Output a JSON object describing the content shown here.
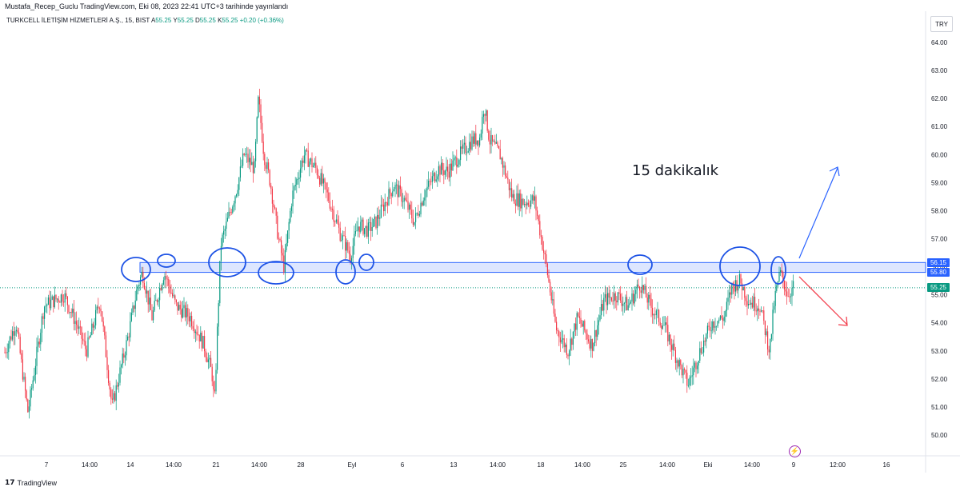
{
  "header": {
    "publish_line": "Mustafa_Recep_Guclu TradingView.com, Eki 08, 2023 22:41 UTC+3 tarihinde yayınlandı"
  },
  "symbol": {
    "name_line": "TURKCELL İLETİŞİM HİZMETLERİ A.Ş., 15, BIST",
    "ohlc": [
      "A",
      "55.25",
      "Y",
      "55.25",
      "D",
      "55.25",
      "K",
      "55.25"
    ],
    "change": "+0.20 (+0.36%)"
  },
  "currency": "TRY",
  "annotation": "15 dakikalık",
  "footer": {
    "logo": "17",
    "brand": "TradingView"
  },
  "colors": {
    "up": "#089981",
    "down": "#f23645",
    "zone_border": "#2962ff",
    "zone_fill": "rgba(41,98,255,0.16)",
    "circle": "#1e53e5",
    "arrow_up": "#2962ff",
    "arrow_down": "#f23645",
    "dotted": "#089981"
  },
  "icons": [
    "tradingview-logo-icon",
    "lightning-icon"
  ],
  "chart_data": {
    "type": "candlestick",
    "interval": "15",
    "y_axis_side": "right",
    "ylim": [
      49.5,
      64.5
    ],
    "y_ticks": [
      "50.00",
      "51.00",
      "52.00",
      "53.00",
      "54.00",
      "55.00",
      "56.00",
      "57.00",
      "58.00",
      "59.00",
      "60.00",
      "61.00",
      "62.00",
      "63.00",
      "64.00"
    ],
    "x_ticks": [
      "7",
      "14:00",
      "14",
      "14:00",
      "21",
      "14:00",
      "28",
      "Eyl",
      "6",
      "13",
      "14:00",
      "18",
      "14:00",
      "25",
      "14:00",
      "Eki",
      "14:00",
      "9",
      "12:00",
      "16"
    ],
    "zone": {
      "low": 55.8,
      "high": 56.15
    },
    "price_labels": [
      {
        "text": "56.15",
        "value": 56.15,
        "color": "#2962ff"
      },
      {
        "text": "55.80",
        "value": 55.8,
        "color": "#2962ff"
      },
      {
        "text": "55.25",
        "value": 55.25,
        "color": "#089981"
      }
    ],
    "last_price": 55.25,
    "key_points": [
      [
        0,
        52.5
      ],
      [
        20,
        54.0
      ],
      [
        35,
        50.8
      ],
      [
        55,
        54.6
      ],
      [
        80,
        55.0
      ],
      [
        95,
        54.0
      ],
      [
        108,
        53.0
      ],
      [
        125,
        54.8
      ],
      [
        140,
        51.0
      ],
      [
        160,
        53.5
      ],
      [
        172,
        55.3
      ],
      [
        178,
        55.8
      ],
      [
        190,
        54.2
      ],
      [
        205,
        55.8
      ],
      [
        220,
        54.6
      ],
      [
        238,
        54.2
      ],
      [
        255,
        53.2
      ],
      [
        265,
        52.2
      ],
      [
        268,
        51.0
      ],
      [
        272,
        54.0
      ],
      [
        276,
        56.8
      ],
      [
        290,
        58.2
      ],
      [
        296,
        58.8
      ],
      [
        305,
        60.0
      ],
      [
        318,
        59.5
      ],
      [
        323,
        62.0
      ],
      [
        330,
        60.0
      ],
      [
        338,
        59.0
      ],
      [
        348,
        57.0
      ],
      [
        355,
        56.0
      ],
      [
        365,
        58.5
      ],
      [
        380,
        60.0
      ],
      [
        395,
        59.5
      ],
      [
        410,
        58.5
      ],
      [
        425,
        57.2
      ],
      [
        438,
        56.4
      ],
      [
        448,
        57.5
      ],
      [
        460,
        57.3
      ],
      [
        470,
        57.6
      ],
      [
        480,
        58.2
      ],
      [
        492,
        58.9
      ],
      [
        505,
        58.4
      ],
      [
        518,
        57.6
      ],
      [
        530,
        58.6
      ],
      [
        548,
        59.5
      ],
      [
        560,
        59.4
      ],
      [
        575,
        60.0
      ],
      [
        590,
        60.5
      ],
      [
        600,
        60.6
      ],
      [
        605,
        61.8
      ],
      [
        612,
        60.5
      ],
      [
        625,
        60.0
      ],
      [
        640,
        58.5
      ],
      [
        655,
        58.3
      ],
      [
        668,
        58.4
      ],
      [
        683,
        56.0
      ],
      [
        695,
        53.8
      ],
      [
        710,
        53.0
      ],
      [
        722,
        54.2
      ],
      [
        740,
        53.2
      ],
      [
        755,
        54.8
      ],
      [
        770,
        55.0
      ],
      [
        785,
        54.6
      ],
      [
        800,
        55.4
      ],
      [
        815,
        54.5
      ],
      [
        830,
        53.9
      ],
      [
        845,
        52.8
      ],
      [
        860,
        51.8
      ],
      [
        875,
        53.0
      ],
      [
        890,
        54.0
      ],
      [
        905,
        54.2
      ],
      [
        915,
        55.3
      ],
      [
        925,
        55.5
      ],
      [
        935,
        54.8
      ],
      [
        950,
        54.6
      ],
      [
        962,
        53.0
      ],
      [
        968,
        54.8
      ],
      [
        975,
        55.8
      ],
      [
        985,
        55.0
      ],
      [
        992,
        55.3
      ]
    ]
  }
}
